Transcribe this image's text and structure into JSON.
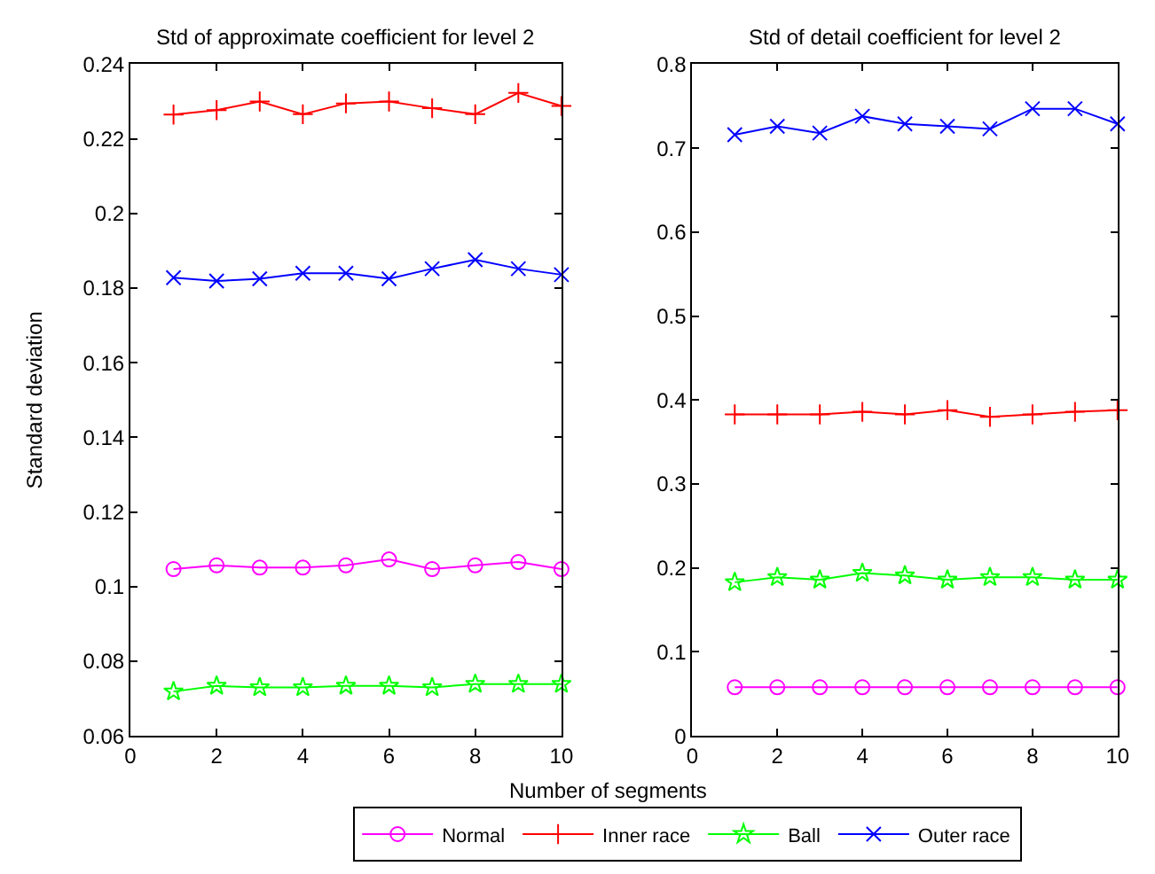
{
  "chart_data": [
    {
      "type": "line",
      "title": "Std of approximate coefficient for level 2",
      "xlabel": "Number of segments",
      "ylabel": "Standard deviation",
      "x": [
        1,
        2,
        3,
        4,
        5,
        6,
        7,
        8,
        9,
        10
      ],
      "xlim": [
        0,
        10
      ],
      "xticks": [
        0,
        2,
        4,
        6,
        8,
        10
      ],
      "ylim": [
        0.06,
        0.24
      ],
      "yticks": [
        0.06,
        0.08,
        0.1,
        0.12,
        0.14,
        0.16,
        0.18,
        0.2,
        0.22,
        0.24
      ],
      "legend": "bottom",
      "series": [
        {
          "name": "Normal",
          "color": "#ff00ff",
          "marker": "circle",
          "values": [
            0.1047,
            0.1057,
            0.1051,
            0.1051,
            0.1057,
            0.1073,
            0.1047,
            0.1057,
            0.1066,
            0.1047
          ]
        },
        {
          "name": "Inner race",
          "color": "#ff0000",
          "marker": "cross",
          "values": [
            0.2265,
            0.2277,
            0.23,
            0.2266,
            0.2295,
            0.23,
            0.2282,
            0.2266,
            0.2323,
            0.2288
          ]
        },
        {
          "name": "Ball",
          "color": "#00ff00",
          "marker": "star",
          "values": [
            0.0719,
            0.0734,
            0.073,
            0.073,
            0.0734,
            0.0734,
            0.073,
            0.0739,
            0.0739,
            0.0739
          ]
        },
        {
          "name": "Outer race",
          "color": "#0000ff",
          "marker": "x",
          "values": [
            0.1828,
            0.1819,
            0.1825,
            0.184,
            0.184,
            0.1825,
            0.1852,
            0.1876,
            0.1852,
            0.1836
          ]
        }
      ]
    },
    {
      "type": "line",
      "title": "Std of detail coefficient for level 2",
      "x": [
        1,
        2,
        3,
        4,
        5,
        6,
        7,
        8,
        9,
        10
      ],
      "xlim": [
        0,
        10
      ],
      "xticks": [
        0,
        2,
        4,
        6,
        8,
        10
      ],
      "ylim": [
        0,
        0.8
      ],
      "yticks": [
        0,
        0.1,
        0.2,
        0.3,
        0.4,
        0.5,
        0.6,
        0.7,
        0.8
      ],
      "legend": "bottom",
      "series": [
        {
          "name": "Normal",
          "color": "#ff00ff",
          "marker": "circle",
          "values": [
            0.058,
            0.058,
            0.058,
            0.058,
            0.058,
            0.058,
            0.058,
            0.058,
            0.058,
            0.058
          ]
        },
        {
          "name": "Inner race",
          "color": "#ff0000",
          "marker": "cross",
          "values": [
            0.383,
            0.383,
            0.383,
            0.386,
            0.383,
            0.388,
            0.38,
            0.383,
            0.386,
            0.388
          ]
        },
        {
          "name": "Ball",
          "color": "#00ff00",
          "marker": "star",
          "values": [
            0.183,
            0.189,
            0.186,
            0.194,
            0.191,
            0.186,
            0.189,
            0.189,
            0.186,
            0.186
          ]
        },
        {
          "name": "Outer race",
          "color": "#0000ff",
          "marker": "x",
          "values": [
            0.716,
            0.726,
            0.718,
            0.738,
            0.729,
            0.726,
            0.723,
            0.747,
            0.747,
            0.729
          ]
        }
      ]
    }
  ]
}
